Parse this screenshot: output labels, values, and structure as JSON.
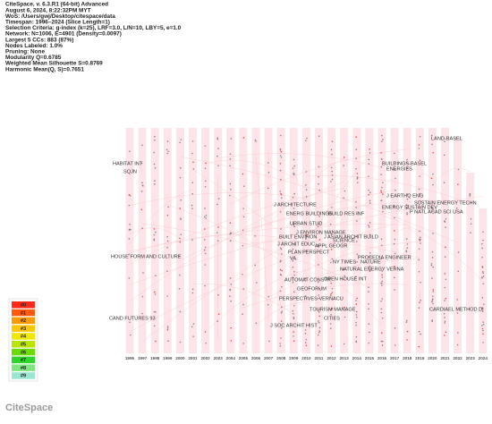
{
  "header": {
    "lines": [
      "CiteSpace, v. 6.3.R1 (64-bit) Advanced",
      "August 6, 2024, 8:22:32PM MYT",
      "WoS: /Users/gwj/Desktop/citespace/data",
      "Timespan: 1996–2024 (Slice Length=1)",
      "Selection Criteria: g-index (k=25), LRF=3.0, L/N=10, LBY=5, e=1.0",
      "Network: N=1006, E=4901 (Density=0.0097)",
      "Largest 5 CCs: 883 (87%)",
      "Nodes Labeled: 1.0%",
      "Pruning: None",
      "Modularity Q=0.6785",
      "Weighted Mean Silhouette S=0.8769",
      "Harmonic Mean(Q, S)=0.7651"
    ]
  },
  "timeline": {
    "years": [
      "1996",
      "1997",
      "1998",
      "1999",
      "2000",
      "2001",
      "2002",
      "2003",
      "2004",
      "2005",
      "2006",
      "2007",
      "2008",
      "2009",
      "2010",
      "2011",
      "2012",
      "2013",
      "2014",
      "2015",
      "2016",
      "2017",
      "2018",
      "2019",
      "2020",
      "2021",
      "2022",
      "2023",
      "2024"
    ],
    "labels": [
      "HABITAT INT",
      "SQJN",
      "J ARCHITECTURE",
      "BUILDINGS-BASEL",
      "ENERGIES",
      "LAND-BASEL",
      "ENERG BUILDINGS",
      "BUILD RES INF",
      "URBAN STUD",
      "J EARTHQ ENG",
      "SUSTAIN ENERGY TECHN",
      "ENERGY SUSTAIN DEV",
      "J ENVIRON MANAGE",
      "BUILT ENVIRON",
      "J ASIAN ARCHIT BUILD",
      "J ARCHIT EDUC",
      "SCIENCE",
      "APPL GEOGR",
      "P NATL ACAD SCI USA",
      "PLAN PERSPECT",
      "PROCEDIA ENGINEER",
      "NY TIMES",
      "NATURE",
      "VA",
      "NATURAL ENERGY VERNA",
      "AUTOMAT CONSTR",
      "OPEN HOUSE INT",
      "HOUSE FORM AND CULTURE",
      "GEOFORUM",
      "PERSPECTIVES VERNACU",
      "TOURISM MANAGE",
      "CITIES",
      "J SOC ARCHIT HIST",
      "CAND FUTURES 93",
      "CARDIAEL METHOD DI"
    ]
  },
  "legend": {
    "items": [
      "#0",
      "#1",
      "#2",
      "#3",
      "#4",
      "#5",
      "#6",
      "#7",
      "#8",
      "#9"
    ]
  },
  "logo": "CiteSpace"
}
